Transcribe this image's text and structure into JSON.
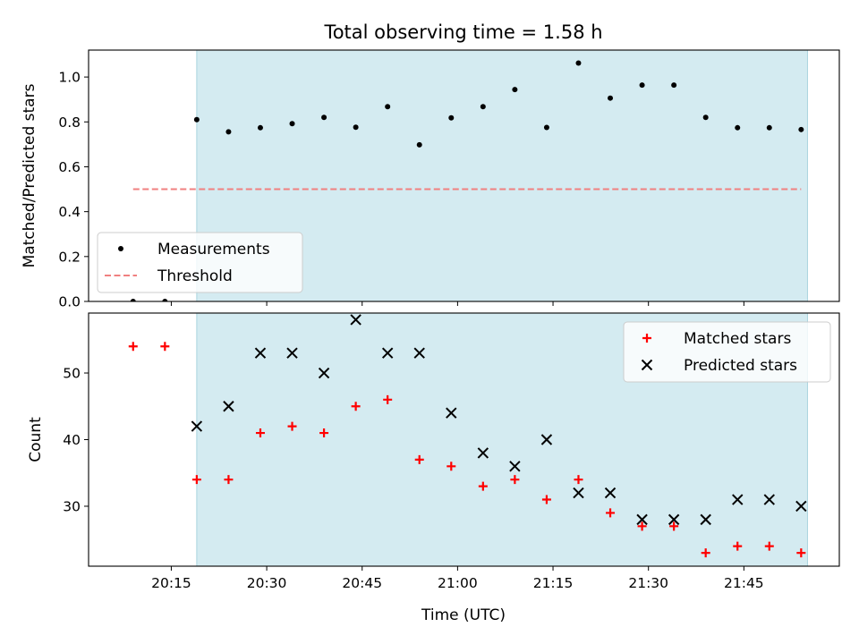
{
  "figure": {
    "title": "Total observing time = 1.58 h",
    "xlabel": "Time (UTC)",
    "x_tick_labels": [
      "20:15",
      "20:30",
      "20:45",
      "21:00",
      "21:15",
      "21:30",
      "21:45"
    ],
    "shaded_region_color": "#d4ebf1"
  },
  "chart_data": [
    {
      "type": "scatter",
      "ylabel": "Matched/Predicted stars",
      "ylim": [
        0,
        1.12
      ],
      "xlim": [
        "20:02",
        "22:00"
      ],
      "shaded_x": [
        "20:19",
        "21:55"
      ],
      "y_ticks": [
        0.0,
        0.2,
        0.4,
        0.6,
        0.8,
        1.0
      ],
      "y_tick_labels": [
        "0.0",
        "0.2",
        "0.4",
        "0.6",
        "0.8",
        "1.0"
      ],
      "legend_position": "lower-left",
      "series": [
        {
          "name": "Measurements",
          "color": "#000000",
          "marker": "dot",
          "x": [
            "20:09",
            "20:14",
            "20:19",
            "20:24",
            "20:29",
            "20:34",
            "20:39",
            "20:44",
            "20:49",
            "20:54",
            "20:59",
            "21:04",
            "21:09",
            "21:14",
            "21:19",
            "21:24",
            "21:29",
            "21:34",
            "21:39",
            "21:44",
            "21:49",
            "21:54"
          ],
          "y": [
            0.0,
            0.0,
            0.81,
            0.756,
            0.774,
            0.792,
            0.82,
            0.776,
            0.868,
            0.698,
            0.818,
            0.868,
            0.944,
            0.775,
            1.062,
            0.906,
            0.964,
            0.964,
            0.82,
            0.774,
            0.774,
            0.766
          ]
        },
        {
          "name": "Threshold",
          "color": "#f08080",
          "marker": "dashed-line",
          "x": [
            "20:09",
            "21:54"
          ],
          "y": [
            0.5,
            0.5
          ]
        }
      ]
    },
    {
      "type": "scatter",
      "ylabel": "Count",
      "ylim": [
        21,
        59
      ],
      "xlim": [
        "20:02",
        "22:00"
      ],
      "shaded_x": [
        "20:19",
        "21:55"
      ],
      "y_ticks": [
        30,
        40,
        50
      ],
      "y_tick_labels": [
        "30",
        "40",
        "50"
      ],
      "legend_position": "top-right",
      "series": [
        {
          "name": "Matched stars",
          "color": "#ff0000",
          "marker": "plus",
          "x": [
            "20:09",
            "20:14",
            "20:19",
            "20:24",
            "20:29",
            "20:34",
            "20:39",
            "20:44",
            "20:49",
            "20:54",
            "20:59",
            "21:04",
            "21:09",
            "21:14",
            "21:19",
            "21:24",
            "21:29",
            "21:34",
            "21:39",
            "21:44",
            "21:49",
            "21:54"
          ],
          "y": [
            54,
            54,
            34,
            34,
            41,
            42,
            41,
            45,
            46,
            37,
            36,
            33,
            34,
            31,
            34,
            29,
            27,
            27,
            23,
            24,
            24,
            23
          ]
        },
        {
          "name": "Predicted stars",
          "color": "#000000",
          "marker": "x",
          "x": [
            "20:19",
            "20:24",
            "20:29",
            "20:34",
            "20:39",
            "20:44",
            "20:49",
            "20:54",
            "20:59",
            "21:04",
            "21:09",
            "21:14",
            "21:19",
            "21:24",
            "21:29",
            "21:34",
            "21:39",
            "21:44",
            "21:49",
            "21:54"
          ],
          "y": [
            42,
            45,
            53,
            53,
            50,
            58,
            53,
            53,
            44,
            38,
            36,
            40,
            32,
            32,
            28,
            28,
            28,
            31,
            31,
            30
          ]
        }
      ]
    }
  ]
}
